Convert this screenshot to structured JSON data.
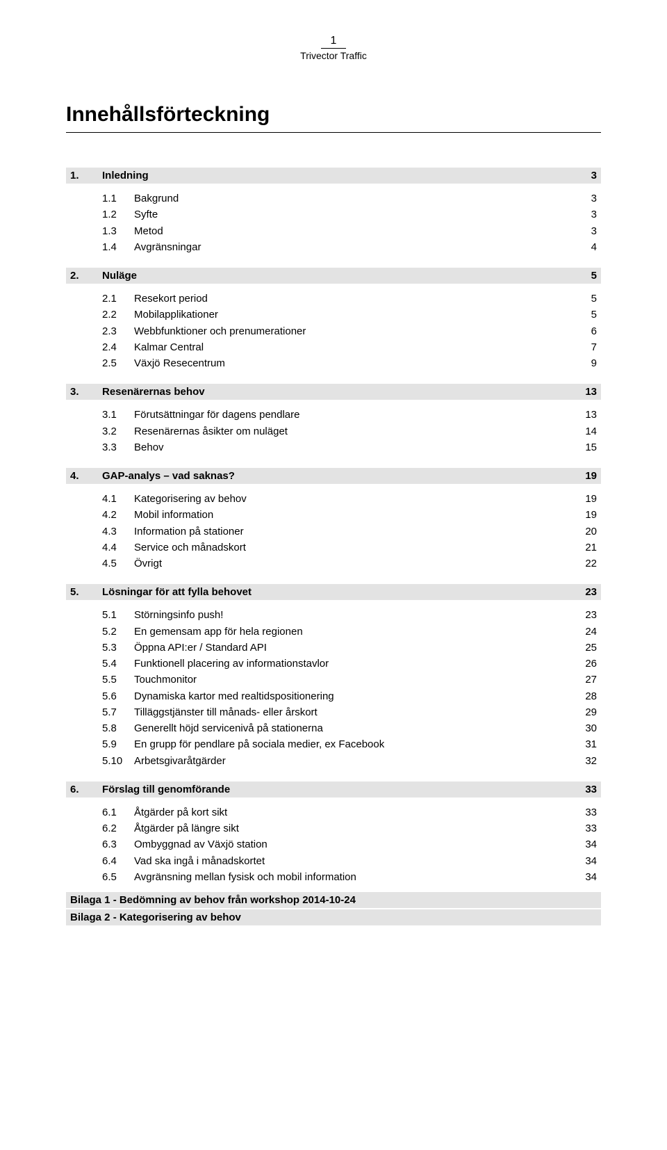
{
  "header": {
    "page_number": "1",
    "brand": "Trivector Traffic"
  },
  "title": "Innehållsförteckning",
  "sections": [
    {
      "num": "1.",
      "label": "Inledning",
      "page": "3",
      "entries": [
        {
          "num": "1.1",
          "label": "Bakgrund",
          "page": "3"
        },
        {
          "num": "1.2",
          "label": "Syfte",
          "page": "3"
        },
        {
          "num": "1.3",
          "label": "Metod",
          "page": "3"
        },
        {
          "num": "1.4",
          "label": "Avgränsningar",
          "page": "4"
        }
      ]
    },
    {
      "num": "2.",
      "label": "Nuläge",
      "page": "5",
      "entries": [
        {
          "num": "2.1",
          "label": "Resekort period",
          "page": "5"
        },
        {
          "num": "2.2",
          "label": "Mobilapplikationer",
          "page": "5"
        },
        {
          "num": "2.3",
          "label": "Webbfunktioner och prenumerationer",
          "page": "6"
        },
        {
          "num": "2.4",
          "label": "Kalmar Central",
          "page": "7"
        },
        {
          "num": "2.5",
          "label": "Växjö Resecentrum",
          "page": "9"
        }
      ]
    },
    {
      "num": "3.",
      "label": "Resenärernas behov",
      "page": "13",
      "entries": [
        {
          "num": "3.1",
          "label": "Förutsättningar för dagens pendlare",
          "page": "13"
        },
        {
          "num": "3.2",
          "label": "Resenärernas åsikter om nuläget",
          "page": "14"
        },
        {
          "num": "3.3",
          "label": "Behov",
          "page": "15"
        }
      ]
    },
    {
      "num": "4.",
      "label": "GAP-analys – vad saknas?",
      "page": "19",
      "entries": [
        {
          "num": "4.1",
          "label": "Kategorisering av behov",
          "page": "19"
        },
        {
          "num": "4.2",
          "label": "Mobil information",
          "page": "19"
        },
        {
          "num": "4.3",
          "label": "Information på stationer",
          "page": "20"
        },
        {
          "num": "4.4",
          "label": "Service och månadskort",
          "page": "21"
        },
        {
          "num": "4.5",
          "label": "Övrigt",
          "page": "22"
        }
      ]
    },
    {
      "num": "5.",
      "label": "Lösningar för att fylla behovet",
      "page": "23",
      "entries": [
        {
          "num": "5.1",
          "label": "Störningsinfo push!",
          "page": "23"
        },
        {
          "num": "5.2",
          "label": "En gemensam app för hela regionen",
          "page": "24"
        },
        {
          "num": "5.3",
          "label": "Öppna API:er / Standard API",
          "page": "25"
        },
        {
          "num": "5.4",
          "label": "Funktionell placering av informationstavlor",
          "page": "26"
        },
        {
          "num": "5.5",
          "label": "Touchmonitor",
          "page": "27"
        },
        {
          "num": "5.6",
          "label": "Dynamiska kartor med realtidspositionering",
          "page": "28"
        },
        {
          "num": "5.7",
          "label": "Tilläggstjänster till månads- eller årskort",
          "page": "29"
        },
        {
          "num": "5.8",
          "label": "Generellt höjd servicenivå på stationerna",
          "page": "30"
        },
        {
          "num": "5.9",
          "label": "En grupp för pendlare på sociala medier, ex Facebook",
          "page": "31"
        },
        {
          "num": "5.10",
          "label": "Arbetsgivaråtgärder",
          "page": "32"
        }
      ]
    },
    {
      "num": "6.",
      "label": "Förslag till genomförande",
      "page": "33",
      "entries": [
        {
          "num": "6.1",
          "label": "Åtgärder på kort sikt",
          "page": "33"
        },
        {
          "num": "6.2",
          "label": "Åtgärder på längre sikt",
          "page": "33"
        },
        {
          "num": "6.3",
          "label": "Ombyggnad av Växjö station",
          "page": "34"
        },
        {
          "num": "6.4",
          "label": "Vad ska ingå i månadskortet",
          "page": "34"
        },
        {
          "num": "6.5",
          "label": "Avgränsning mellan fysisk och mobil information",
          "page": "34"
        }
      ]
    }
  ],
  "appendices": [
    "Bilaga 1 - Bedömning av behov från workshop 2014-10-24",
    "Bilaga 2 - Kategorisering av behov"
  ],
  "colors": {
    "section_bg": "#e3e3e3",
    "text": "#000000",
    "page_bg": "#ffffff"
  }
}
